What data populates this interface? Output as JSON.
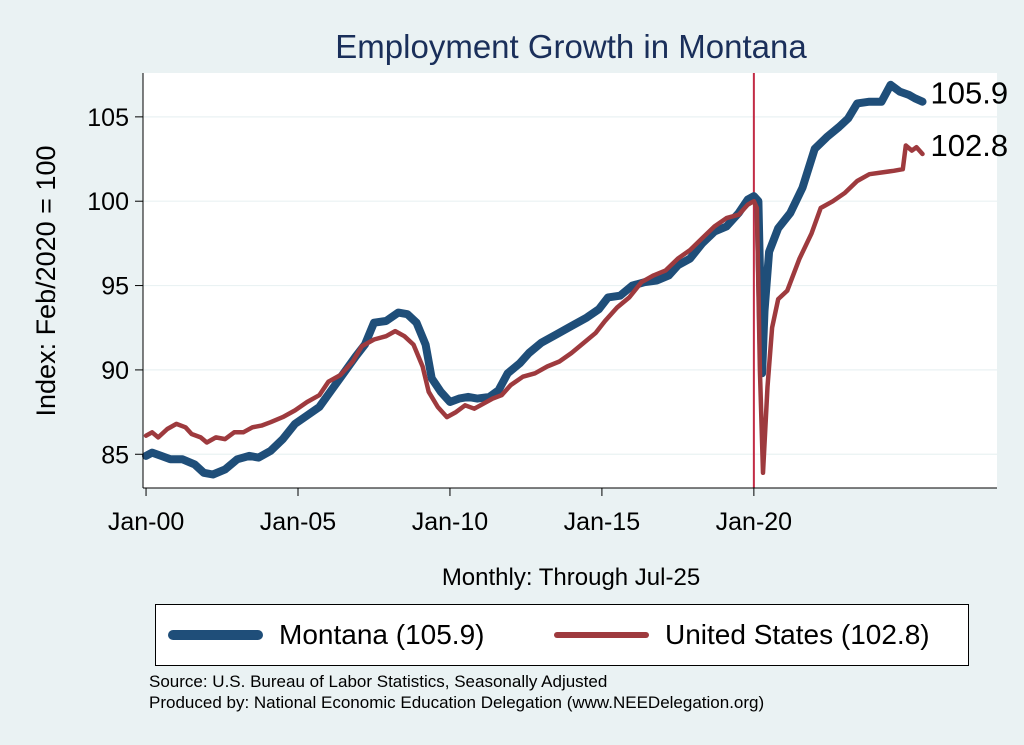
{
  "chart_data": {
    "type": "line",
    "title": "Employment Growth in Montana",
    "xlabel": "Monthly: Through Jul-25",
    "ylabel": "Index: Feb/2020 = 100",
    "x_ticks": [
      {
        "label": "Jan-00",
        "year": 2000
      },
      {
        "label": "Jan-05",
        "year": 2005
      },
      {
        "label": "Jan-10",
        "year": 2010
      },
      {
        "label": "Jan-15",
        "year": 2015
      },
      {
        "label": "Jan-20",
        "year": 2020
      }
    ],
    "xlim": [
      1999.9,
      2028.0
    ],
    "y_ticks": [
      85,
      90,
      95,
      100,
      105
    ],
    "ylim": [
      83.0,
      107.6
    ],
    "reference_line": {
      "year": 2020.0,
      "color": "#c22b45"
    },
    "grid": true,
    "series": [
      {
        "name": "Montana",
        "legend_label": "Montana (105.9)",
        "end_label": "105.9",
        "color": "#1f4e79",
        "points": [
          [
            2000.0,
            84.9
          ],
          [
            2000.2,
            85.1
          ],
          [
            2000.5,
            84.9
          ],
          [
            2000.8,
            84.7
          ],
          [
            2001.2,
            84.7
          ],
          [
            2001.6,
            84.4
          ],
          [
            2001.9,
            83.9
          ],
          [
            2002.2,
            83.8
          ],
          [
            2002.6,
            84.1
          ],
          [
            2003.0,
            84.7
          ],
          [
            2003.4,
            84.9
          ],
          [
            2003.7,
            84.8
          ],
          [
            2004.1,
            85.2
          ],
          [
            2004.5,
            85.9
          ],
          [
            2004.9,
            86.8
          ],
          [
            2005.3,
            87.3
          ],
          [
            2005.7,
            87.8
          ],
          [
            2006.1,
            88.8
          ],
          [
            2006.5,
            89.8
          ],
          [
            2006.9,
            90.8
          ],
          [
            2007.2,
            91.5
          ],
          [
            2007.5,
            92.8
          ],
          [
            2007.9,
            92.9
          ],
          [
            2008.3,
            93.4
          ],
          [
            2008.6,
            93.3
          ],
          [
            2008.9,
            92.8
          ],
          [
            2009.2,
            91.5
          ],
          [
            2009.4,
            89.5
          ],
          [
            2009.7,
            88.7
          ],
          [
            2010.0,
            88.1
          ],
          [
            2010.3,
            88.3
          ],
          [
            2010.6,
            88.4
          ],
          [
            2010.9,
            88.3
          ],
          [
            2011.3,
            88.4
          ],
          [
            2011.6,
            88.8
          ],
          [
            2011.9,
            89.8
          ],
          [
            2012.3,
            90.4
          ],
          [
            2012.6,
            91.0
          ],
          [
            2013.0,
            91.6
          ],
          [
            2013.5,
            92.1
          ],
          [
            2014.0,
            92.6
          ],
          [
            2014.5,
            93.1
          ],
          [
            2014.9,
            93.6
          ],
          [
            2015.2,
            94.3
          ],
          [
            2015.6,
            94.4
          ],
          [
            2016.0,
            95.0
          ],
          [
            2016.4,
            95.2
          ],
          [
            2016.8,
            95.3
          ],
          [
            2017.2,
            95.6
          ],
          [
            2017.5,
            96.2
          ],
          [
            2017.9,
            96.6
          ],
          [
            2018.3,
            97.5
          ],
          [
            2018.7,
            98.2
          ],
          [
            2019.1,
            98.5
          ],
          [
            2019.5,
            99.3
          ],
          [
            2019.8,
            100.1
          ],
          [
            2020.0,
            100.3
          ],
          [
            2020.15,
            100.0
          ],
          [
            2020.2,
            96.0
          ],
          [
            2020.27,
            89.8
          ],
          [
            2020.35,
            93.5
          ],
          [
            2020.5,
            97.0
          ],
          [
            2020.8,
            98.4
          ],
          [
            2021.2,
            99.3
          ],
          [
            2021.6,
            100.8
          ],
          [
            2022.0,
            103.1
          ],
          [
            2022.4,
            103.8
          ],
          [
            2022.8,
            104.4
          ],
          [
            2023.1,
            104.9
          ],
          [
            2023.4,
            105.8
          ],
          [
            2023.8,
            105.9
          ],
          [
            2024.2,
            105.9
          ],
          [
            2024.5,
            106.9
          ],
          [
            2024.8,
            106.5
          ],
          [
            2025.1,
            106.3
          ],
          [
            2025.3,
            106.1
          ],
          [
            2025.55,
            105.9
          ]
        ]
      },
      {
        "name": "United States",
        "legend_label": "United States (102.8)",
        "end_label": "102.8",
        "color": "#9e3a3e",
        "points": [
          [
            2000.0,
            86.1
          ],
          [
            2000.2,
            86.3
          ],
          [
            2000.4,
            86.0
          ],
          [
            2000.7,
            86.5
          ],
          [
            2001.0,
            86.8
          ],
          [
            2001.3,
            86.6
          ],
          [
            2001.5,
            86.2
          ],
          [
            2001.8,
            86.0
          ],
          [
            2002.0,
            85.7
          ],
          [
            2002.3,
            86.0
          ],
          [
            2002.6,
            85.9
          ],
          [
            2002.9,
            86.3
          ],
          [
            2003.2,
            86.3
          ],
          [
            2003.5,
            86.6
          ],
          [
            2003.8,
            86.7
          ],
          [
            2004.1,
            86.9
          ],
          [
            2004.5,
            87.2
          ],
          [
            2004.9,
            87.6
          ],
          [
            2005.3,
            88.1
          ],
          [
            2005.7,
            88.5
          ],
          [
            2006.0,
            89.3
          ],
          [
            2006.4,
            89.7
          ],
          [
            2006.8,
            90.5
          ],
          [
            2007.1,
            91.4
          ],
          [
            2007.5,
            91.8
          ],
          [
            2007.9,
            92.0
          ],
          [
            2008.2,
            92.3
          ],
          [
            2008.5,
            92.0
          ],
          [
            2008.8,
            91.5
          ],
          [
            2009.1,
            90.2
          ],
          [
            2009.3,
            88.7
          ],
          [
            2009.6,
            87.8
          ],
          [
            2009.9,
            87.2
          ],
          [
            2010.2,
            87.5
          ],
          [
            2010.5,
            87.9
          ],
          [
            2010.8,
            87.7
          ],
          [
            2011.1,
            88.0
          ],
          [
            2011.4,
            88.3
          ],
          [
            2011.7,
            88.5
          ],
          [
            2012.0,
            89.1
          ],
          [
            2012.4,
            89.6
          ],
          [
            2012.8,
            89.8
          ],
          [
            2013.2,
            90.2
          ],
          [
            2013.6,
            90.5
          ],
          [
            2014.0,
            91.0
          ],
          [
            2014.4,
            91.6
          ],
          [
            2014.8,
            92.2
          ],
          [
            2015.1,
            92.9
          ],
          [
            2015.5,
            93.7
          ],
          [
            2015.9,
            94.3
          ],
          [
            2016.3,
            95.2
          ],
          [
            2016.7,
            95.6
          ],
          [
            2017.1,
            95.9
          ],
          [
            2017.5,
            96.6
          ],
          [
            2017.9,
            97.1
          ],
          [
            2018.3,
            97.8
          ],
          [
            2018.7,
            98.5
          ],
          [
            2019.1,
            99.0
          ],
          [
            2019.5,
            99.2
          ],
          [
            2019.8,
            99.8
          ],
          [
            2020.0,
            100.0
          ],
          [
            2020.1,
            99.6
          ],
          [
            2020.2,
            90.0
          ],
          [
            2020.3,
            83.9
          ],
          [
            2020.45,
            89.0
          ],
          [
            2020.6,
            92.5
          ],
          [
            2020.8,
            94.2
          ],
          [
            2021.1,
            94.7
          ],
          [
            2021.5,
            96.6
          ],
          [
            2021.9,
            98.1
          ],
          [
            2022.2,
            99.6
          ],
          [
            2022.6,
            100.0
          ],
          [
            2023.0,
            100.5
          ],
          [
            2023.4,
            101.2
          ],
          [
            2023.8,
            101.6
          ],
          [
            2024.2,
            101.7
          ],
          [
            2024.6,
            101.8
          ],
          [
            2024.9,
            101.9
          ],
          [
            2025.0,
            103.3
          ],
          [
            2025.2,
            103.0
          ],
          [
            2025.35,
            103.2
          ],
          [
            2025.55,
            102.8
          ]
        ]
      }
    ]
  },
  "source_lines": [
    "Source: U.S. Bureau of Labor Statistics, Seasonally Adjusted",
    "Produced by: National Economic Education Delegation (www.NEEDelegation.org)"
  ]
}
